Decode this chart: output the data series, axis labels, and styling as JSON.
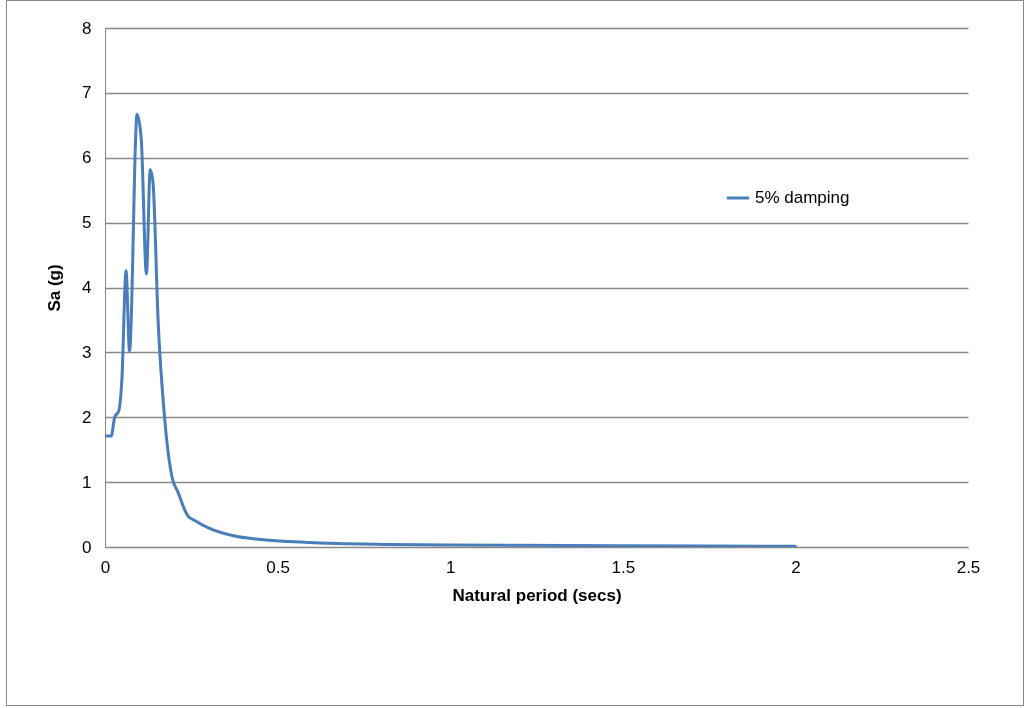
{
  "chart_data": {
    "type": "line",
    "xlabel": "Natural period (secs)",
    "ylabel": "Sa (g)",
    "xlim": [
      0,
      2.5
    ],
    "xticks": [
      0,
      0.5,
      1,
      1.5,
      2,
      2.5
    ],
    "ylim": [
      0,
      8
    ],
    "yticks": [
      0,
      1,
      2,
      3,
      4,
      5,
      6,
      7,
      8
    ],
    "grid": "y",
    "legend": "top right",
    "marker": "none",
    "line_style": "solid",
    "series": [
      {
        "name": "5% damping",
        "color": "#4a7ebb",
        "x": [
          0,
          0.018,
          0.028,
          0.04,
          0.049,
          0.061,
          0.071,
          0.093,
          0.105,
          0.12,
          0.131,
          0.139,
          0.154,
          0.173,
          0.194,
          0.211,
          0.24,
          0.26,
          0.298,
          0.376,
          0.443,
          0.588,
          0.83,
          1.0,
          1.5,
          2.0
        ],
        "values": [
          1.71,
          1.71,
          2.0,
          2.1,
          2.59,
          4.26,
          3.02,
          6.67,
          6.29,
          4.21,
          5.82,
          5.62,
          3.47,
          1.97,
          1.08,
          0.85,
          0.48,
          0.41,
          0.3,
          0.17,
          0.12,
          0.07,
          0.04,
          0.03,
          0.02,
          0.01
        ]
      }
    ]
  }
}
